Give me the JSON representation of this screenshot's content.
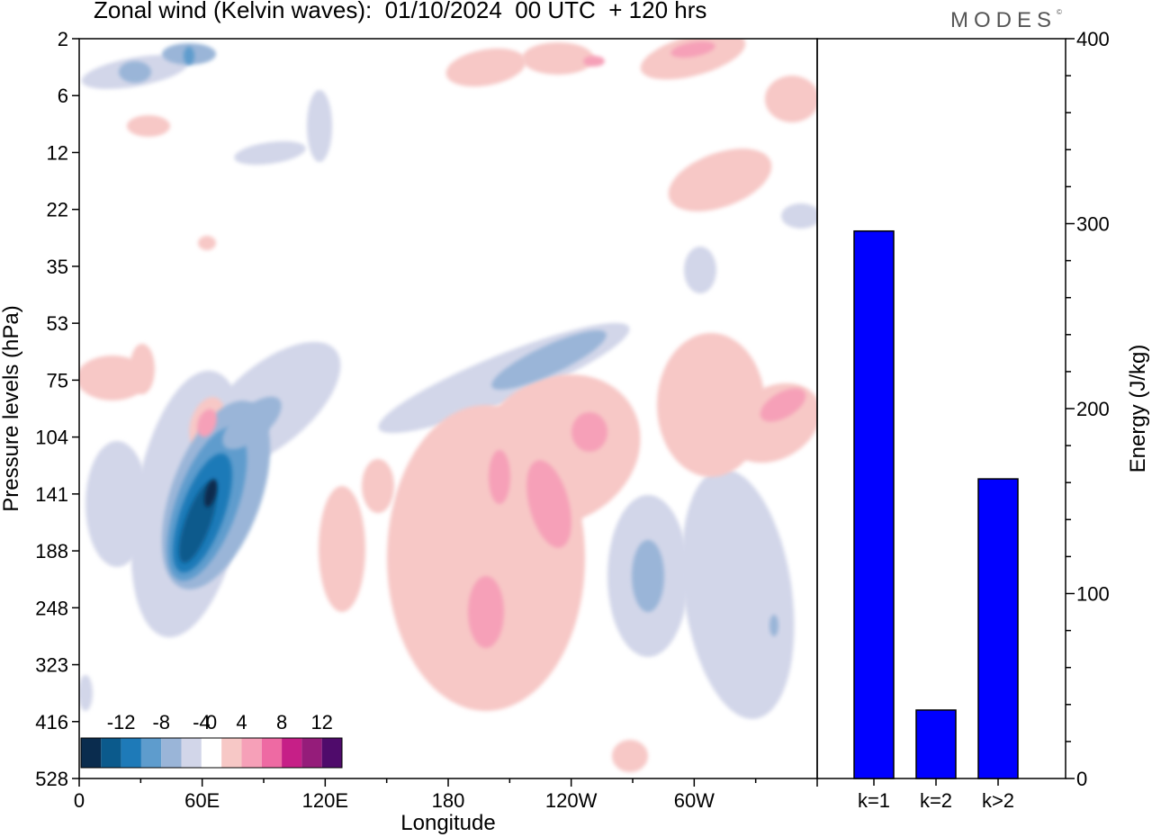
{
  "title": "Zonal wind (Kelvin waves):  01/10/2024  00 UTC  + 120 hrs",
  "brand": "MODES",
  "brand_mark": "©",
  "chart_data": [
    {
      "type": "heatmap",
      "title": "Zonal wind (Kelvin waves):  01/10/2024  00 UTC  + 120 hrs",
      "xlabel": "Longitude",
      "ylabel": "Pressure levels (hPa)",
      "x_ticks": [
        "0",
        "60E",
        "120E",
        "180",
        "120W",
        "60W"
      ],
      "y_ticks": [
        "2",
        "6",
        "12",
        "22",
        "35",
        "53",
        "75",
        "104",
        "141",
        "188",
        "248",
        "323",
        "416",
        "528"
      ],
      "colorbar": {
        "labels": [
          "-12",
          "-8",
          "-4",
          "0",
          "4",
          "8",
          "12"
        ],
        "levels": [
          -14,
          -12,
          -10,
          -8,
          -6,
          -4,
          -2,
          2,
          4,
          6,
          8,
          10,
          12,
          14
        ],
        "colors": [
          "#0a2c4e",
          "#0b5a8c",
          "#1e7ab8",
          "#5e9ccd",
          "#9ab5d8",
          "#d2d6e9",
          "#ffffff",
          "#f7c8c6",
          "#f6a0b8",
          "#ee6aa3",
          "#c61f87",
          "#951c7a",
          "#4f0b6b"
        ]
      },
      "features": [
        {
          "label": "negative anomaly core",
          "lon": 62,
          "level": 141,
          "value": -13
        },
        {
          "label": "negative band",
          "lon": 58,
          "level": 188,
          "value": -10
        },
        {
          "label": "negative tilt upper",
          "lon": 90,
          "level": 104,
          "value": -6
        },
        {
          "label": "negative upper stripe",
          "lon": 240,
          "level": 75,
          "value": -6
        },
        {
          "label": "positive mid-tropo",
          "lon": 190,
          "level": 248,
          "value": 6
        },
        {
          "label": "positive tilted band",
          "lon": 225,
          "level": 141,
          "value": 6
        },
        {
          "label": "positive far east",
          "lon": 350,
          "level": 104,
          "value": 6
        },
        {
          "label": "negative east lower",
          "lon": 285,
          "level": 248,
          "value": -6
        }
      ]
    },
    {
      "type": "bar",
      "categories": [
        "k=1",
        "k=2",
        "k>2"
      ],
      "values": [
        296,
        37,
        162
      ],
      "ylabel": "Energy (J/kg)",
      "ylim": [
        0,
        400
      ],
      "y_ticks": [
        "0",
        "100",
        "200",
        "300",
        "400"
      ],
      "bar_color": "#0000ff"
    }
  ]
}
